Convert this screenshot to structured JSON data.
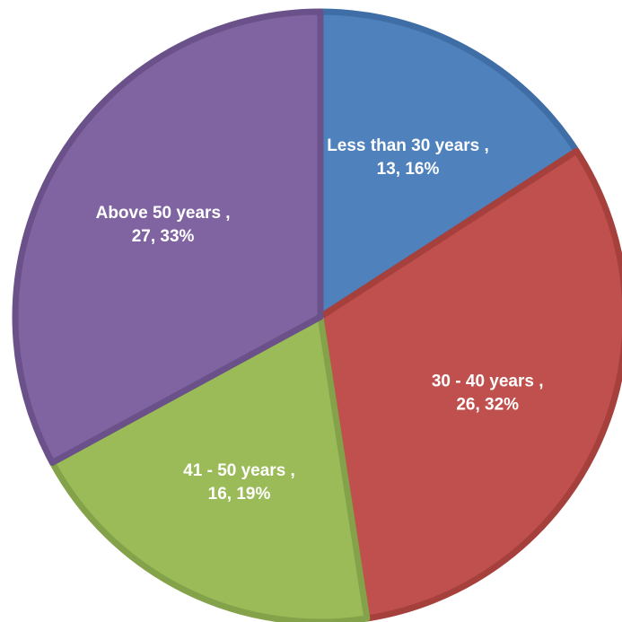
{
  "chart_data": {
    "type": "pie",
    "title": "",
    "start_angle_deg": 0,
    "direction": "clockwise",
    "slices": [
      {
        "label": "Less than 30 years ,",
        "value": 13,
        "percent": "16%",
        "color": "#4F81BD",
        "edge": "#3F6EA6"
      },
      {
        "label": "30 - 40 years ,",
        "value": 26,
        "percent": "32%",
        "color": "#C0504D",
        "edge": "#A6403D"
      },
      {
        "label": "41 - 50 years ,",
        "value": 16,
        "percent": "19%",
        "color": "#9BBB59",
        "edge": "#84A24A"
      },
      {
        "label": "Above 50 years ,",
        "value": 27,
        "percent": "33%",
        "color": "#8064A2",
        "edge": "#6A5189"
      }
    ]
  }
}
